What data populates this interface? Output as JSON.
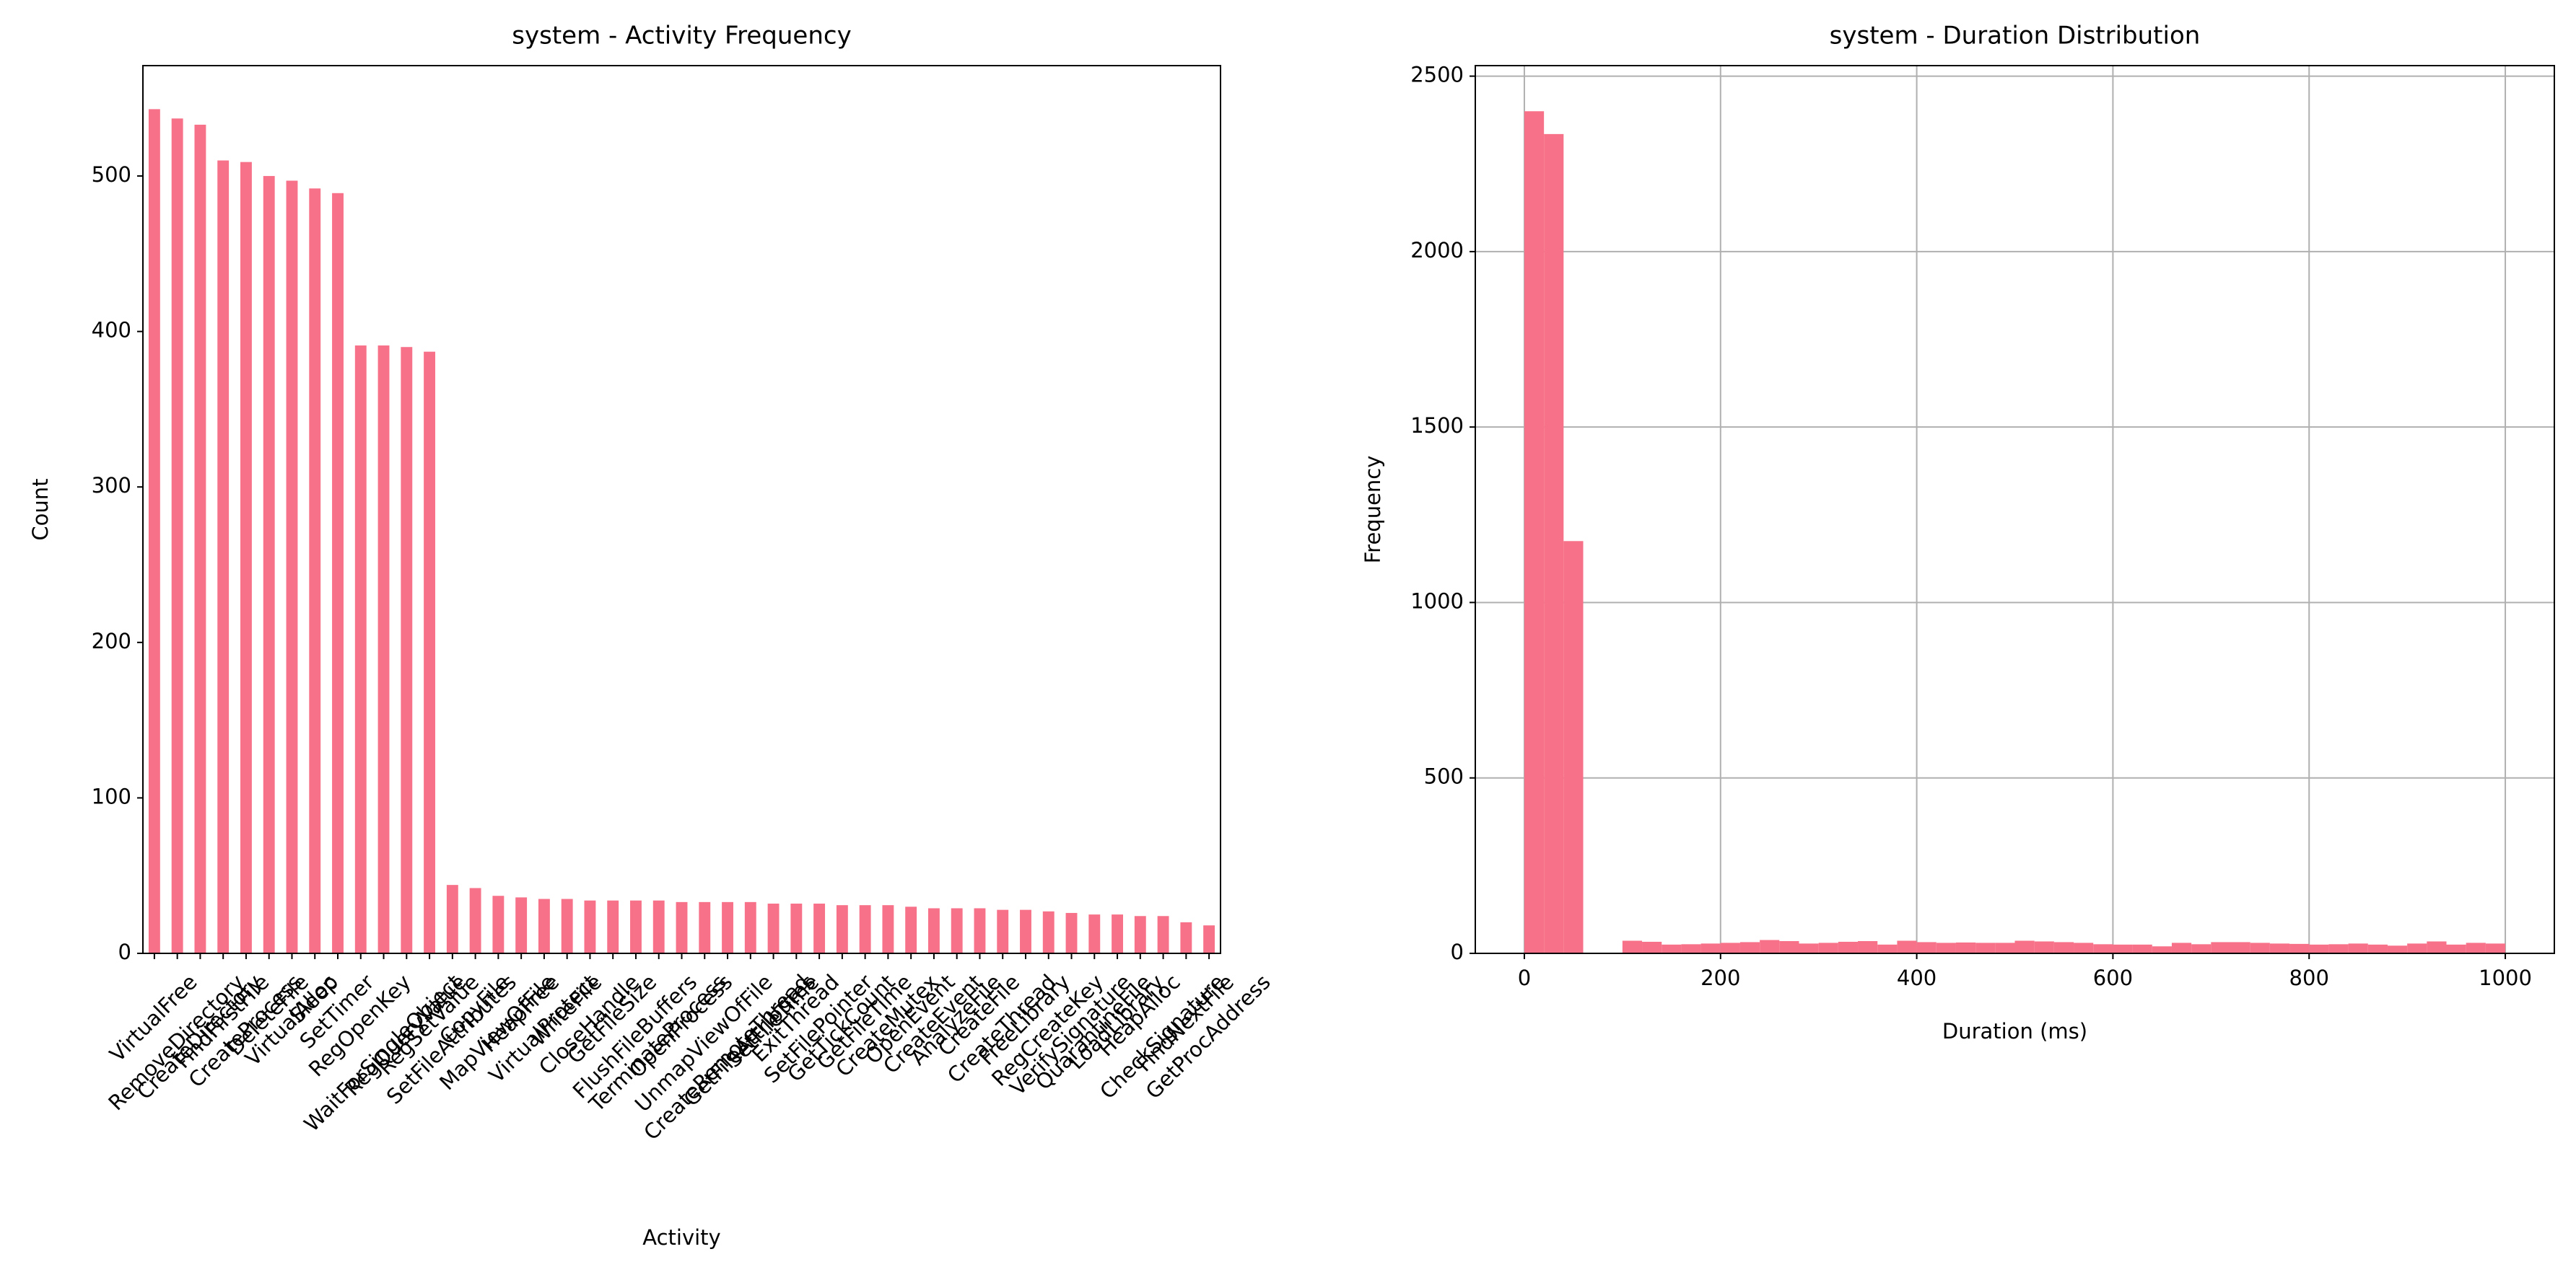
{
  "chart_data": [
    {
      "type": "bar",
      "title": "system - Activity Frequency",
      "xlabel": "Activity",
      "ylabel": "Count",
      "categories": [
        "VirtualFree",
        "RemoveDirectory",
        "CreateDirectory",
        "FindFirstFile",
        "CreateProcess",
        "DeleteFile",
        "VirtualAlloc",
        "Sleep",
        "SetTimer",
        "RegOpenKey",
        "WaitForSingleObject",
        "RegQueryValue",
        "RegSetValue",
        "SetFileAttributes",
        "CopyFile",
        "MapViewOfFile",
        "HeapFree",
        "VirtualProtect",
        "WriteFile",
        "CloseHandle",
        "GetFileSize",
        "FlushFileBuffers",
        "TerminateProcess",
        "OpenProcess",
        "UnmapViewOfFile",
        "CreateRemoteThread",
        "GetFileAttributes",
        "SetFileTime",
        "ExitThread",
        "SetFilePointer",
        "GetTickCount",
        "GetFileTime",
        "CreateMutex",
        "OpenEvent",
        "CreateEvent",
        "AnalyzeFile",
        "CreateFile",
        "CreateThread",
        "FreeLibrary",
        "RegCreateKey",
        "VerifySignature",
        "QuarantineFile",
        "LoadLibrary",
        "HeapAlloc",
        "CheckSignature",
        "FindNextFile",
        "GetProcAddress"
      ],
      "values": [
        543,
        537,
        533,
        510,
        509,
        500,
        497,
        492,
        489,
        391,
        391,
        390,
        387,
        44,
        42,
        37,
        36,
        35,
        35,
        34,
        34,
        34,
        34,
        33,
        33,
        33,
        33,
        32,
        32,
        32,
        31,
        31,
        31,
        30,
        29,
        29,
        29,
        28,
        28,
        27,
        26,
        25,
        25,
        24,
        24,
        20,
        18
      ],
      "color": "#f77189",
      "ylim": [
        0,
        571
      ],
      "yticks": [
        0,
        100,
        200,
        300,
        400,
        500
      ],
      "grid": false
    },
    {
      "type": "histogram",
      "title": "system - Duration Distribution",
      "xlabel": "Duration (ms)",
      "ylabel": "Frequency",
      "bins": [
        0,
        20,
        40,
        60,
        80,
        100,
        120,
        140,
        160,
        180,
        200,
        220,
        240,
        260,
        280,
        300,
        320,
        340,
        360,
        380,
        400,
        420,
        440,
        460,
        480,
        500,
        520,
        540,
        560,
        580,
        600,
        620,
        640,
        660,
        680,
        700,
        720,
        740,
        760,
        780,
        800,
        820,
        840,
        860,
        880,
        900,
        920,
        940,
        960,
        980,
        1000
      ],
      "counts": [
        2400,
        2335,
        1175,
        0,
        0,
        36,
        33,
        25,
        26,
        28,
        30,
        32,
        38,
        35,
        28,
        30,
        33,
        35,
        25,
        36,
        32,
        30,
        31,
        30,
        30,
        36,
        34,
        32,
        30,
        26,
        25,
        25,
        20,
        30,
        26,
        32,
        32,
        30,
        28,
        27,
        25,
        26,
        28,
        25,
        22,
        28,
        34,
        25,
        30,
        28
      ],
      "color": "#f77189",
      "xlim": [
        -50,
        1050
      ],
      "ylim": [
        0,
        2530
      ],
      "xticks": [
        0,
        200,
        400,
        600,
        800,
        1000
      ],
      "yticks": [
        0,
        500,
        1000,
        1500,
        2000,
        2500
      ],
      "grid": true
    }
  ]
}
